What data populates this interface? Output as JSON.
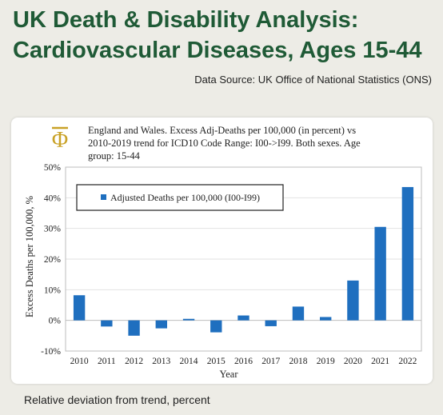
{
  "header": {
    "title_line1": "UK Death & Disability Analysis:",
    "title_line2": "Cardiovascular Diseases, Ages 15-44",
    "source": "Data Source: UK Office of National Statistics (ONS)"
  },
  "footer": {
    "caption": "Relative deviation from trend, percent"
  },
  "colors": {
    "title": "#1f5a36",
    "bar": "#1f6fbf",
    "logo": "#c9a227"
  },
  "logo": {
    "icon": "phi-logo-icon"
  },
  "chart_data": {
    "type": "bar",
    "title_lines": [
      "England and Wales. Excess Adj-Deaths per 100,000 (in percent) vs",
      "2010-2019 trend for ICD10 Code Range: I00->I99. Both sexes. Age",
      "group: 15-44"
    ],
    "xlabel": "Year",
    "ylabel": "Excess Deaths per 100,000, %",
    "ylim": [
      -10,
      50
    ],
    "yticks": [
      -10,
      0,
      10,
      20,
      30,
      40,
      50
    ],
    "ytick_labels": [
      "-10%",
      "0%",
      "10%",
      "20%",
      "30%",
      "40%",
      "50%"
    ],
    "categories": [
      "2010",
      "2011",
      "2012",
      "2013",
      "2014",
      "2015",
      "2016",
      "2017",
      "2018",
      "2019",
      "2020",
      "2021",
      "2022"
    ],
    "series": [
      {
        "name": "Adjusted Deaths per 100,000 (I00-I99)",
        "values": [
          8.2,
          -2.0,
          -5.0,
          -2.6,
          0.5,
          -3.9,
          1.6,
          -1.9,
          4.5,
          1.1,
          13.0,
          30.5,
          43.5
        ]
      }
    ],
    "legend_position": "top-left",
    "grid": true
  }
}
